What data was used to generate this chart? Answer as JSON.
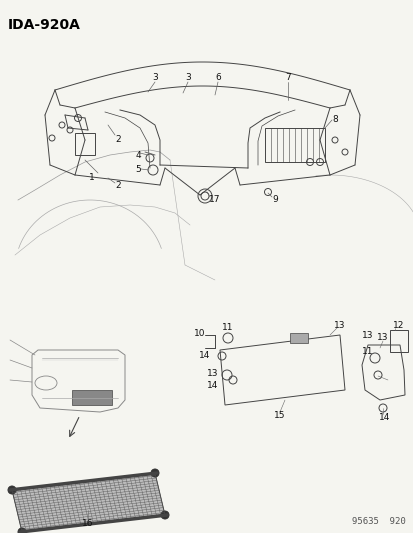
{
  "title": "IDA-920A",
  "footer": "95635  920",
  "bg_color": "#f5f5f0",
  "line_color": "#444444",
  "label_color": "#111111",
  "title_fontsize": 10,
  "footer_fontsize": 6.5,
  "label_fontsize": 6.5
}
